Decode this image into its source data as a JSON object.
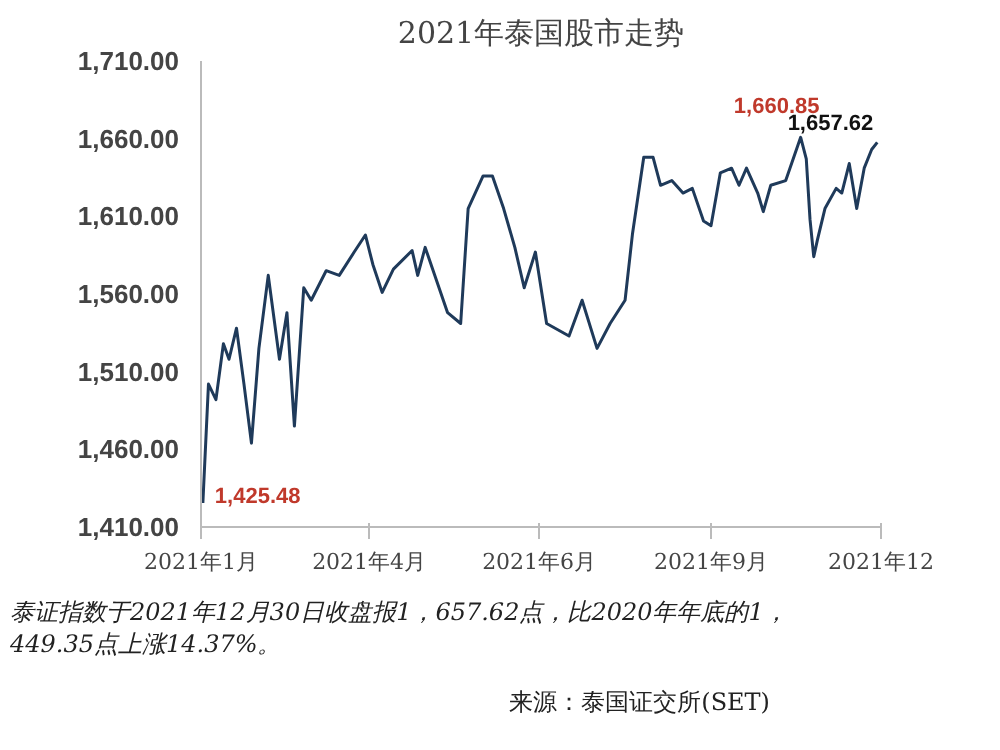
{
  "chart_data": {
    "type": "line",
    "title": "2021年泰国股市走势",
    "x": [
      "2021-01-02",
      "2021-01-05",
      "2021-01-09",
      "2021-01-13",
      "2021-01-16",
      "2021-01-20",
      "2021-01-24",
      "2021-01-28",
      "2021-02-01",
      "2021-02-06",
      "2021-02-12",
      "2021-02-16",
      "2021-02-20",
      "2021-02-25",
      "2021-03-01",
      "2021-03-09",
      "2021-03-16",
      "2021-03-24",
      "2021-03-30",
      "2021-04-03",
      "2021-04-08",
      "2021-04-14",
      "2021-04-24",
      "2021-04-27",
      "2021-05-01",
      "2021-05-13",
      "2021-05-20",
      "2021-05-24",
      "2021-06-01",
      "2021-06-06",
      "2021-06-12",
      "2021-06-18",
      "2021-06-23",
      "2021-06-29",
      "2021-07-05",
      "2021-07-17",
      "2021-07-24",
      "2021-08-01",
      "2021-08-08",
      "2021-08-16",
      "2021-08-20",
      "2021-08-26",
      "2021-08-31",
      "2021-09-04",
      "2021-09-10",
      "2021-09-16",
      "2021-09-21",
      "2021-09-27",
      "2021-10-01",
      "2021-10-06",
      "2021-10-12",
      "2021-10-16",
      "2021-10-20",
      "2021-10-26",
      "2021-10-29",
      "2021-11-02",
      "2021-11-10",
      "2021-11-18",
      "2021-11-21",
      "2021-11-23",
      "2021-11-25",
      "2021-11-27",
      "2021-12-01",
      "2021-12-07",
      "2021-12-10",
      "2021-12-14",
      "2021-12-18",
      "2021-12-22",
      "2021-12-26",
      "2021-12-29"
    ],
    "series": [
      {
        "color": "#1f3a5a",
        "values": [
          1425.48,
          1502,
          1492,
          1528,
          1518,
          1538,
          1502,
          1464,
          1525,
          1572,
          1518,
          1548,
          1475,
          1564,
          1556,
          1575,
          1572,
          1587,
          1598,
          1579,
          1561,
          1576,
          1588,
          1572,
          1590,
          1548,
          1541,
          1615,
          1636,
          1636,
          1615,
          1590,
          1564,
          1587,
          1541,
          1533,
          1556,
          1525,
          1541,
          1556,
          1599,
          1648,
          1648,
          1630,
          1633,
          1625,
          1628,
          1607,
          1604,
          1638,
          1641,
          1630,
          1641,
          1625,
          1613,
          1630,
          1633,
          1660.85,
          1647,
          1608,
          1584,
          1595,
          1615,
          1628,
          1625,
          1644,
          1615,
          1641,
          1653,
          1657.62
        ]
      }
    ],
    "xlim": [
      "2021-01-01",
      "2021-12-31"
    ],
    "xticks": [
      {
        "value": "2021-01-01",
        "label": "2021年1月"
      },
      {
        "value": "2021-04-01",
        "label": "2021年4月"
      },
      {
        "value": "2021-07-01",
        "label": "2021年6月"
      },
      {
        "value": "2021-10-01",
        "label": "2021年9月"
      },
      {
        "value": "2021-12-31",
        "label": "2021年12"
      }
    ],
    "ylim": [
      1410,
      1710
    ],
    "yticks": [
      {
        "value": 1410,
        "label": "1,410.00"
      },
      {
        "value": 1460,
        "label": "1,460.00"
      },
      {
        "value": 1510,
        "label": "1,510.00"
      },
      {
        "value": 1560,
        "label": "1,560.00"
      },
      {
        "value": 1610,
        "label": "1,610.00"
      },
      {
        "value": 1660,
        "label": "1,660.00"
      },
      {
        "value": 1710,
        "label": "1,710.00"
      }
    ],
    "annotations": [
      {
        "text": "1,660.85",
        "x": "2021-11-18",
        "y": 1660.85
      },
      {
        "text": "1,657.62",
        "x": "2021-12-29",
        "y": 1657.62
      },
      {
        "text": "1,425.48",
        "x": "2021-01-02",
        "y": 1425.48
      },
      "泰证指数于2021年12月30日收盘报1，657.62点，比2020年年底的1，449.35点上涨14.37%。",
      "来源：泰国证交所(SET)"
    ],
    "grid": false
  }
}
